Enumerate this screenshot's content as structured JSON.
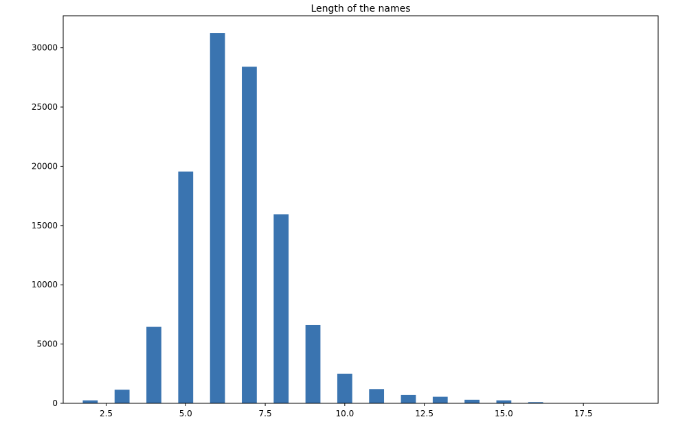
{
  "chart_data": {
    "type": "bar",
    "title": "Length of the names",
    "xlabel": "",
    "ylabel": "",
    "xlim": [
      1.15,
      19.85
    ],
    "ylim": [
      0,
      32700
    ],
    "bar_width": 0.47,
    "bar_color": "#3a74b0",
    "x": [
      2,
      3,
      4,
      5,
      6,
      7,
      8,
      9,
      10,
      11,
      12,
      13,
      14,
      15,
      16,
      17,
      18,
      19
    ],
    "values": [
      250,
      1150,
      6450,
      19550,
      31250,
      28400,
      15950,
      6600,
      2500,
      1200,
      700,
      550,
      300,
      250,
      100,
      20,
      10,
      5
    ],
    "x_ticks": [
      2.5,
      5.0,
      7.5,
      10.0,
      12.5,
      15.0,
      17.5
    ],
    "x_tick_labels": [
      "2.5",
      "5.0",
      "7.5",
      "10.0",
      "12.5",
      "15.0",
      "17.5"
    ],
    "y_ticks": [
      0,
      5000,
      10000,
      15000,
      20000,
      25000,
      30000
    ],
    "y_tick_labels": [
      "0",
      "5000",
      "10000",
      "15000",
      "20000",
      "25000",
      "30000"
    ],
    "grid": false,
    "legend": "none"
  }
}
